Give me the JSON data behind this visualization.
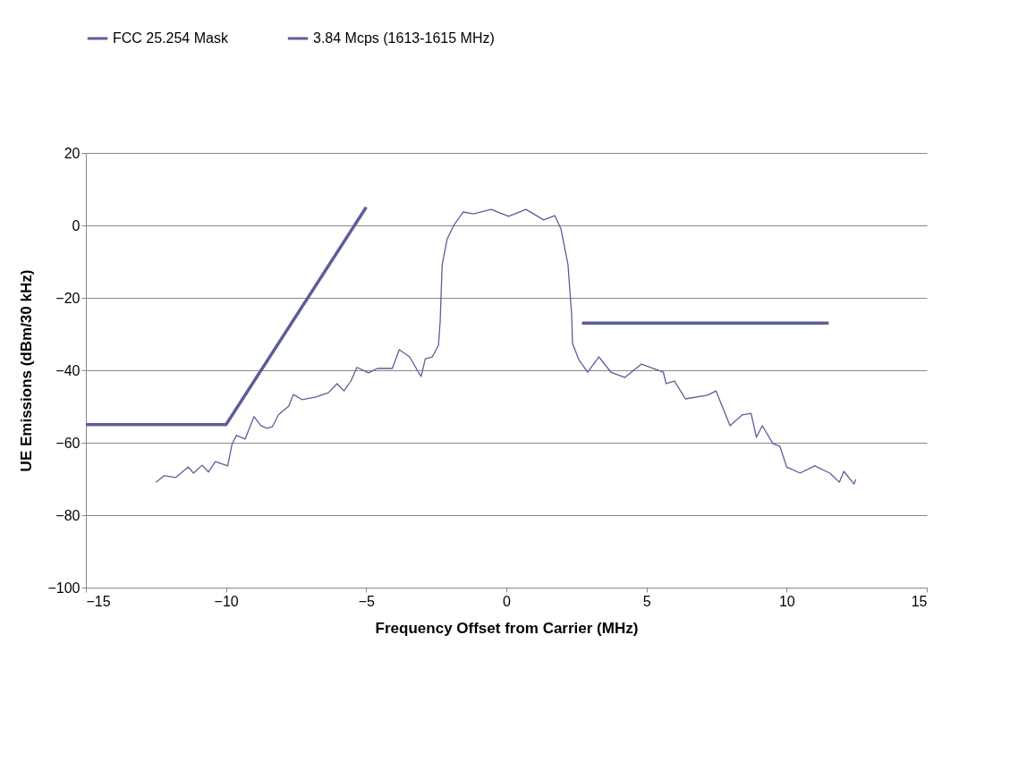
{
  "chart_data": {
    "type": "line",
    "xlabel": "Frequency Offset from Carrier (MHz)",
    "ylabel": "UE Emissions (dBm/30 kHz)",
    "xlim": [
      -15,
      15
    ],
    "xticks": [
      -15,
      -10,
      -5,
      0,
      5,
      10,
      15
    ],
    "ylim": [
      -100,
      20
    ],
    "yticks": [
      -100,
      -80,
      -60,
      -40,
      -20,
      0,
      20
    ],
    "grid": "y",
    "legend": "top",
    "line_style": "solid",
    "marker": "none",
    "series": [
      {
        "name": "FCC 25.254 Mask",
        "color": "#5b5e99",
        "x": [
          -15,
          -10,
          -5,
          0,
          2.7,
          11.5
        ],
        "values": [
          -55,
          -55,
          5,
          null,
          -27,
          -27
        ]
      },
      {
        "name": "3.84 Mcps (1613-1615 MHz)",
        "color": "#5b5e99",
        "x": [
          -12.5,
          -12.2,
          -11.8,
          -11.35,
          -11.16,
          -10.85,
          -10.63,
          -10.38,
          -9.94,
          -9.79,
          -9.63,
          -9.32,
          -9.0,
          -8.76,
          -8.54,
          -8.35,
          -8.13,
          -7.76,
          -7.6,
          -7.29,
          -6.79,
          -6.35,
          -6.04,
          -5.79,
          -5.54,
          -5.33,
          -4.92,
          -4.6,
          -4.07,
          -3.82,
          -3.45,
          -3.14,
          -3.04,
          -2.89,
          -2.64,
          -2.42,
          -2.36,
          -2.29,
          -2.11,
          -1.86,
          -1.54,
          -1.17,
          -0.54,
          0.08,
          0.7,
          1.33,
          1.73,
          1.95,
          2.2,
          2.33,
          2.36,
          2.58,
          2.9,
          3.3,
          3.73,
          4.23,
          4.82,
          5.6,
          5.7,
          6.0,
          6.39,
          7.17,
          7.48,
          7.98,
          8.42,
          8.73,
          8.92,
          9.13,
          9.51,
          9.76,
          10.0,
          10.48,
          11.0,
          11.54,
          11.88,
          12.04,
          12.4,
          12.47
        ],
        "values": [
          -70.9,
          -69.1,
          -69.6,
          -66.7,
          -68.4,
          -66.2,
          -68.1,
          -65.2,
          -66.4,
          -60.5,
          -58.0,
          -59.0,
          -52.8,
          -55.3,
          -56.0,
          -55.6,
          -52.3,
          -49.9,
          -46.7,
          -48.1,
          -47.4,
          -46.2,
          -43.7,
          -45.7,
          -42.9,
          -39.2,
          -40.7,
          -39.5,
          -39.5,
          -34.3,
          -36.3,
          -40.5,
          -41.7,
          -36.8,
          -36.3,
          -33.1,
          -26.4,
          -10.9,
          -3.7,
          0.2,
          3.7,
          3.2,
          4.4,
          2.5,
          4.4,
          1.5,
          2.7,
          -1.0,
          -10.9,
          -24.7,
          -32.6,
          -37.0,
          -40.5,
          -36.3,
          -40.5,
          -42.0,
          -38.3,
          -40.5,
          -43.7,
          -43.0,
          -47.9,
          -46.9,
          -45.7,
          -55.3,
          -52.3,
          -51.9,
          -58.5,
          -55.3,
          -60.2,
          -61.0,
          -66.7,
          -68.4,
          -66.4,
          -68.4,
          -70.9,
          -67.9,
          -71.4,
          -70.1
        ]
      }
    ]
  }
}
